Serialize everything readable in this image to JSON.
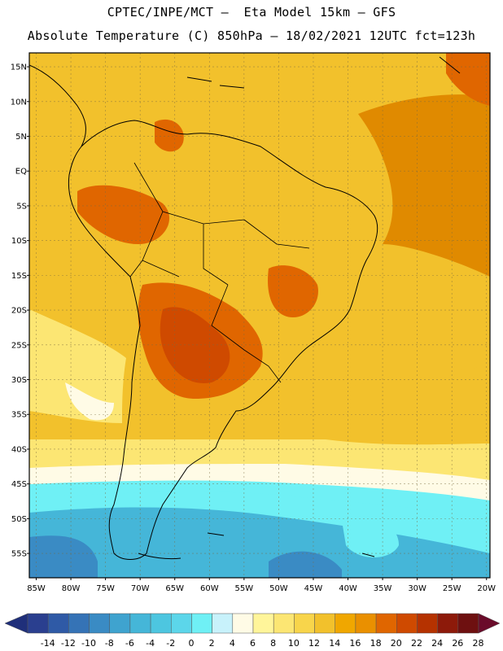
{
  "header": {
    "line1": "CPTEC/INPE/MCT –  Eta Model 15km – GFS",
    "line2": "Absolute Temperature (C) 850hPa – 18/02/2021 12UTC fct=123h"
  },
  "axes": {
    "lat_labels": [
      "15N",
      "10N",
      "5N",
      "EQ",
      "5S",
      "10S",
      "15S",
      "20S",
      "25S",
      "30S",
      "35S",
      "40S",
      "45S",
      "50S",
      "55S"
    ],
    "lat_values": [
      15,
      10,
      5,
      0,
      -5,
      -10,
      -15,
      -20,
      -25,
      -30,
      -35,
      -40,
      -45,
      -50,
      -55
    ],
    "lon_labels": [
      "85W",
      "80W",
      "75W",
      "70W",
      "65W",
      "60W",
      "55W",
      "50W",
      "45W",
      "40W",
      "35W",
      "30W",
      "25W",
      "20W"
    ],
    "lon_values": [
      -85,
      -80,
      -75,
      -70,
      -65,
      -60,
      -55,
      -50,
      -45,
      -40,
      -35,
      -30,
      -25,
      -20
    ]
  },
  "colorbar": {
    "labels": [
      "-14",
      "-12",
      "-10",
      "-8",
      "-6",
      "-4",
      "-2",
      "0",
      "2",
      "4",
      "6",
      "8",
      "10",
      "12",
      "14",
      "16",
      "18",
      "20",
      "22",
      "24",
      "26",
      "28"
    ],
    "colors": [
      "#2a3f8f",
      "#2f5aa6",
      "#3573b6",
      "#3a8bc4",
      "#3fa3cf",
      "#45b6d8",
      "#4dc6e0",
      "#5cd6ea",
      "#6ff0f5",
      "#c8f2fb",
      "#fffbe6",
      "#fff59a",
      "#fce673",
      "#f8d54b",
      "#f2c12c",
      "#f0a700",
      "#ea9000",
      "#e06600",
      "#cf4a00",
      "#b53200",
      "#8d1a0a",
      "#6e1010"
    ],
    "low_color": "#1f2f7a",
    "high_color": "#6a0b2a"
  },
  "regions": [
    {
      "name": "region-cold-ocean",
      "color": "#3a8bc4"
    },
    {
      "name": "region-cool-ocean",
      "color": "#45b6d8"
    },
    {
      "name": "region-cyan-band",
      "color": "#6ff0f5"
    },
    {
      "name": "region-pale-band",
      "color": "#fffbe6"
    },
    {
      "name": "region-yellow-band",
      "color": "#fce673"
    },
    {
      "name": "region-amber-field",
      "color": "#f2c12c"
    },
    {
      "name": "region-orange-field",
      "color": "#f0a700"
    },
    {
      "name": "region-hot-interior",
      "color": "#e06600"
    },
    {
      "name": "region-hottest-core",
      "color": "#cf4a00"
    },
    {
      "name": "region-atlantic-warm",
      "color": "#e08a00"
    }
  ]
}
